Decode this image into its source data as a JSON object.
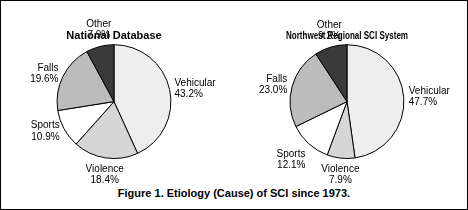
{
  "chart_data": [
    {
      "type": "pie",
      "title": "National Database",
      "categories": [
        "Vehicular",
        "Violence",
        "Sports",
        "Falls",
        "Other"
      ],
      "values": [
        43.2,
        18.4,
        10.9,
        19.6,
        7.9
      ],
      "value_labels": [
        "43.2%",
        "18.4%",
        "10.9%",
        "19.6%",
        "7.9%"
      ],
      "colors": [
        "#eeeeee",
        "#d6d6d6",
        "#ffffff",
        "#bcbcbc",
        "#3a3a3a"
      ],
      "data_labels": true
    },
    {
      "type": "pie",
      "title": "Northwest Regional SCI System",
      "categories": [
        "Vehicular",
        "Violence",
        "Sports",
        "Falls",
        "Other"
      ],
      "values": [
        47.7,
        7.9,
        12.1,
        23.0,
        9.2
      ],
      "value_labels": [
        "47.7%",
        "7.9%",
        "12.1%",
        "23.0%",
        "9.2%"
      ],
      "colors": [
        "#eeeeee",
        "#d6d6d6",
        "#ffffff",
        "#bcbcbc",
        "#3a3a3a"
      ],
      "data_labels": true
    }
  ],
  "caption": "Figure 1. Etiology (Cause) of SCI since 1973."
}
